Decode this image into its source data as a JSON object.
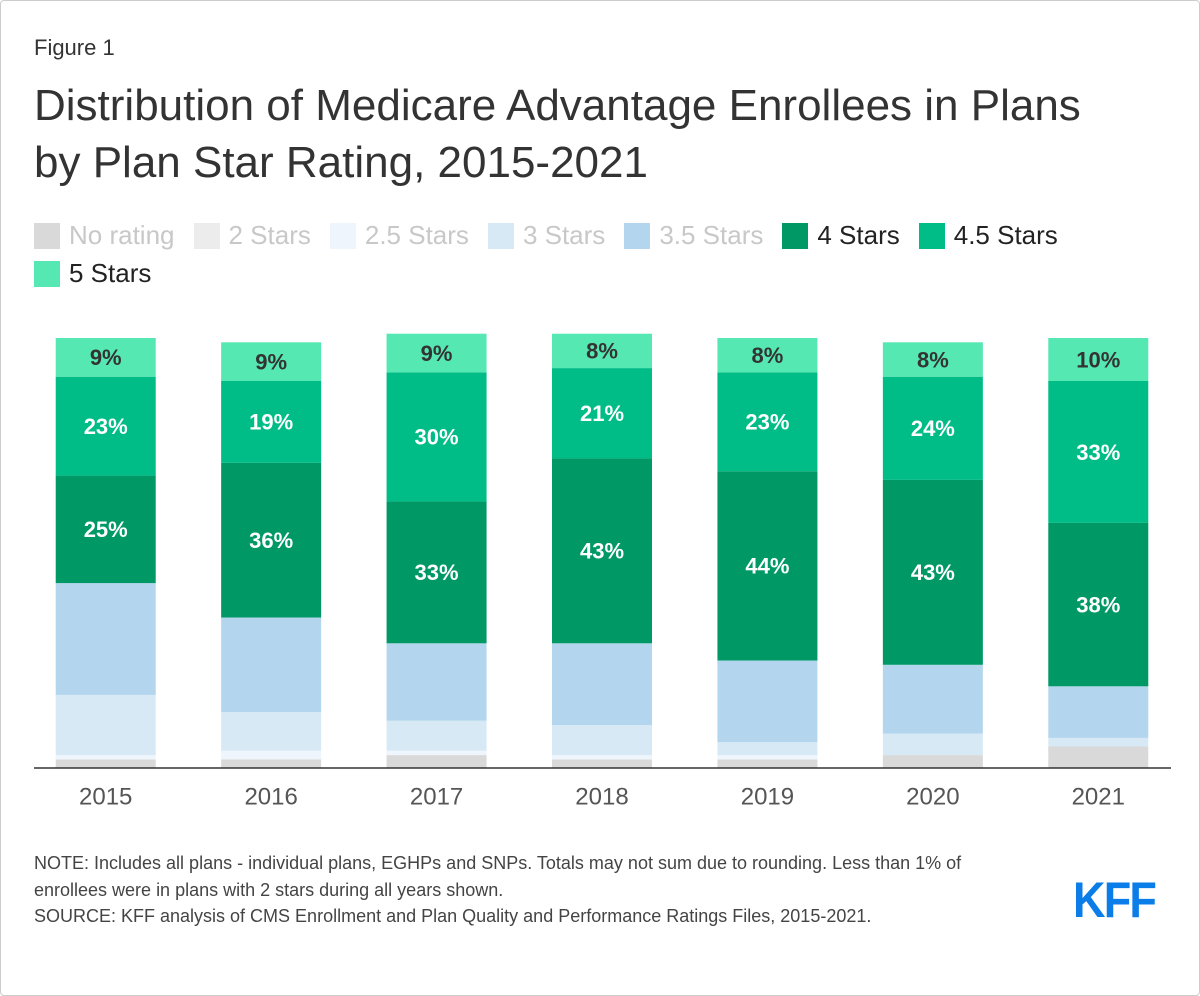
{
  "chart_data": {
    "type": "stacked_bar",
    "figure_label": "Figure 1",
    "title": "Distribution of Medicare Advantage Enrollees in Plans by Plan Star Rating, 2015-2021",
    "categories": [
      "2015",
      "2016",
      "2017",
      "2018",
      "2019",
      "2020",
      "2021"
    ],
    "ylim": [
      0,
      100
    ],
    "series": [
      {
        "name": "No rating",
        "color": "#d9d9d9",
        "muted": true,
        "values": [
          2,
          2,
          3,
          2,
          2,
          3,
          5
        ]
      },
      {
        "name": "2 Stars",
        "color": "#ececec",
        "muted": true,
        "values": [
          0,
          0,
          0,
          0,
          0,
          0,
          0
        ]
      },
      {
        "name": "2.5 Stars",
        "color": "#eef5fc",
        "muted": true,
        "values": [
          1,
          2,
          1,
          1,
          1,
          0,
          0
        ]
      },
      {
        "name": "3 Stars",
        "color": "#d8e9f6",
        "muted": true,
        "values": [
          14,
          9,
          7,
          7,
          3,
          5,
          2
        ]
      },
      {
        "name": "3.5 Stars",
        "color": "#b3d5ee",
        "muted": true,
        "values": [
          26,
          22,
          18,
          19,
          19,
          16,
          12
        ]
      },
      {
        "name": "4 Stars",
        "color": "#009966",
        "muted": false,
        "label_color": "#ffffff",
        "values": [
          25,
          36,
          33,
          43,
          44,
          43,
          38
        ],
        "value_labels": [
          "25%",
          "36%",
          "33%",
          "43%",
          "44%",
          "43%",
          "38%"
        ]
      },
      {
        "name": "4.5 Stars",
        "color": "#00bc86",
        "muted": false,
        "label_color": "#ffffff",
        "values": [
          23,
          19,
          30,
          21,
          23,
          24,
          33
        ],
        "value_labels": [
          "23%",
          "19%",
          "30%",
          "21%",
          "23%",
          "24%",
          "33%"
        ]
      },
      {
        "name": "5 Stars",
        "color": "#55e8b2",
        "muted": false,
        "label_color": "#333333",
        "values": [
          9,
          9,
          9,
          8,
          8,
          8,
          10
        ],
        "value_labels": [
          "9%",
          "9%",
          "9%",
          "8%",
          "8%",
          "8%",
          "10%"
        ]
      }
    ],
    "note": "NOTE: Includes all plans - individual plans, EGHPs and SNPs. Totals may not sum due to rounding. Less than 1% of enrollees were in plans with 2 stars during all years shown.",
    "source": "SOURCE: KFF analysis of CMS Enrollment and Plan Quality and Performance Ratings Files, 2015-2021.",
    "logo": "KFF"
  }
}
